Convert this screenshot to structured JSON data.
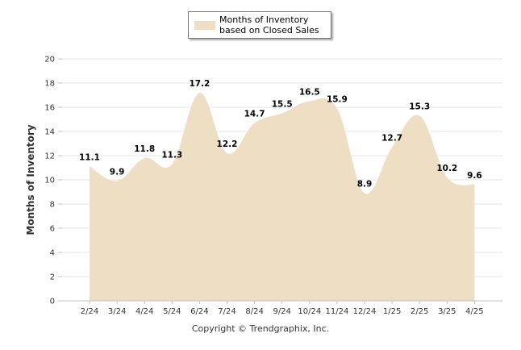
{
  "legend": {
    "label": "Months of Inventory based on Closed Sales"
  },
  "colors": {
    "fill": "#EEDFC4",
    "grid": "#e6e6e6",
    "axis": "#c0c0c0"
  },
  "copyright": "Copyright © Trendgraphix, Inc.",
  "chart_data": {
    "type": "area",
    "title": "",
    "xlabel": "",
    "ylabel": "Months of Inventory",
    "ylim": [
      0,
      20
    ],
    "yticks": [
      0,
      2,
      4,
      6,
      8,
      10,
      12,
      14,
      16,
      18,
      20
    ],
    "grid": true,
    "legend_position": "top-center",
    "categories": [
      "2/24",
      "3/24",
      "4/24",
      "5/24",
      "6/24",
      "7/24",
      "8/24",
      "9/24",
      "10/24",
      "11/24",
      "12/24",
      "1/25",
      "2/25",
      "3/25",
      "4/25"
    ],
    "series": [
      {
        "name": "Months of Inventory based on Closed Sales",
        "values": [
          11.1,
          9.9,
          11.8,
          11.3,
          17.2,
          12.2,
          14.7,
          15.5,
          16.5,
          15.9,
          8.9,
          12.7,
          15.3,
          10.2,
          9.6
        ]
      }
    ]
  }
}
